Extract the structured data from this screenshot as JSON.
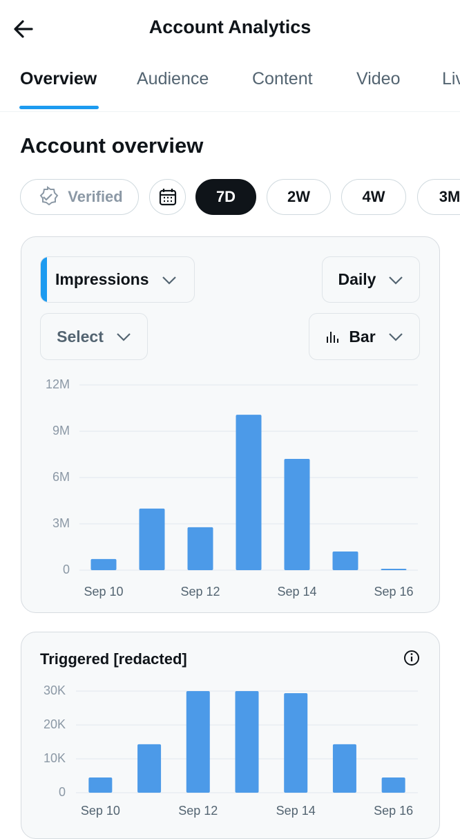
{
  "header": {
    "title": "Account Analytics"
  },
  "tabs": [
    "Overview",
    "Audience",
    "Content",
    "Video",
    "Live"
  ],
  "section_title": "Account overview",
  "filters": [
    "Verified",
    "7D",
    "2W",
    "4W",
    "3M"
  ],
  "controls": {
    "metric": "Impressions",
    "interval": "Daily",
    "compare": "Select",
    "chart_style": "Bar"
  },
  "chart_data": [
    {
      "type": "bar",
      "color": "#4c9ae8",
      "grid": true,
      "categories": [
        "Sep 10",
        null,
        "Sep 12",
        null,
        "Sep 14",
        null,
        "Sep 16"
      ],
      "values": [
        720000,
        3990000,
        2780000,
        10070000,
        7210000,
        1210000,
        90000
      ],
      "ylim": [
        0,
        12000000
      ],
      "yticks": [
        0,
        {
          "value": 3000000,
          "label": "3M"
        },
        {
          "value": 6000000,
          "label": "6M"
        },
        {
          "value": 9000000,
          "label": "9M"
        },
        {
          "value": 12000000,
          "label": "12M"
        }
      ]
    },
    {
      "type": "bar",
      "title": "Triggered [redacted]",
      "color": "#4c9ae8",
      "grid": true,
      "categories": [
        "Sep 10",
        null,
        "Sep 12",
        null,
        "Sep 14",
        null,
        "Sep 16"
      ],
      "values": [
        4500,
        14300,
        30000,
        30000,
        29400,
        14300,
        4500
      ],
      "ylim": [
        0,
        30000
      ],
      "yticks": [
        0,
        {
          "value": 10000,
          "label": "10K"
        },
        {
          "value": 20000,
          "label": "20K"
        },
        {
          "value": 30000,
          "label": "30K"
        }
      ]
    }
  ]
}
